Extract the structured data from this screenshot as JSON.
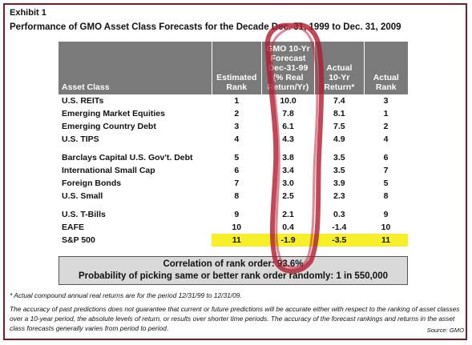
{
  "exhibit_label": "Exhibit 1",
  "title": "Performance of GMO Asset Class Forecasts for the Decade Dec. 31, 1999 to Dec. 31, 2009",
  "table": {
    "headers": {
      "asset_class": "Asset Class",
      "estimated_rank": [
        "Estimated",
        "Rank"
      ],
      "forecast": [
        "GMO 10-Yr",
        "Forecast",
        "Dec-31-99",
        "(% Real",
        "Return/Yr)"
      ],
      "actual_return": [
        "Actual",
        "10-Yr",
        "Return*"
      ],
      "actual_rank": [
        "Actual",
        "Rank"
      ]
    },
    "groups": [
      [
        {
          "asset": "U.S. REITs",
          "est_rank": "1",
          "forecast": "10.0",
          "actual_return": "7.4",
          "actual_rank": "3"
        },
        {
          "asset": "Emerging Market Equities",
          "est_rank": "2",
          "forecast": "7.8",
          "actual_return": "8.1",
          "actual_rank": "1"
        },
        {
          "asset": "Emerging Country Debt",
          "est_rank": "3",
          "forecast": "6.1",
          "actual_return": "7.5",
          "actual_rank": "2"
        },
        {
          "asset": "U.S. TIPS",
          "est_rank": "4",
          "forecast": "4.3",
          "actual_return": "4.9",
          "actual_rank": "4"
        }
      ],
      [
        {
          "asset": "Barclays Capital U.S. Gov't. Debt",
          "est_rank": "5",
          "forecast": "3.8",
          "actual_return": "3.5",
          "actual_rank": "6"
        },
        {
          "asset": "International Small Cap",
          "est_rank": "6",
          "forecast": "3.4",
          "actual_return": "3.5",
          "actual_rank": "7"
        },
        {
          "asset": "Foreign Bonds",
          "est_rank": "7",
          "forecast": "3.0",
          "actual_return": "3.9",
          "actual_rank": "5"
        },
        {
          "asset": "U.S. Small",
          "est_rank": "8",
          "forecast": "2.5",
          "actual_return": "2.3",
          "actual_rank": "8"
        }
      ],
      [
        {
          "asset": "U.S. T-Bills",
          "est_rank": "9",
          "forecast": "2.1",
          "actual_return": "0.3",
          "actual_rank": "9"
        },
        {
          "asset": "EAFE",
          "est_rank": "10",
          "forecast": "0.4",
          "actual_return": "-1.4",
          "actual_rank": "10"
        },
        {
          "asset": "S&P 500",
          "est_rank": "11",
          "forecast": "-1.9",
          "actual_return": "-3.5",
          "actual_rank": "11",
          "highlight": true
        }
      ]
    ]
  },
  "correlation_line": "Correlation of rank order: 93.6%",
  "probability_line": "Probability of picking same or better rank order randomly:  1 in 550,000",
  "footnote": "* Actual compound annual real returns are for the period 12/31/99 to 12/31/09.",
  "disclaimer": "The accuracy of past predictions does not guarantee that current or future predictions will be accurate either with respect to the ranking of asset classes over a 10-year period, the absolute levels of return, or results over shorter time periods.  The accuracy of the forecast rankings and returns in the asset class forecasts generally varies from period to period.",
  "source": "Source:  GMO",
  "colors": {
    "frame": "#7a1b22",
    "header_bg": "#7a7a7a",
    "highlight": "#f6ef2a",
    "marker": "#b01a2e",
    "corr_box_bg": "#d9d9d9"
  }
}
